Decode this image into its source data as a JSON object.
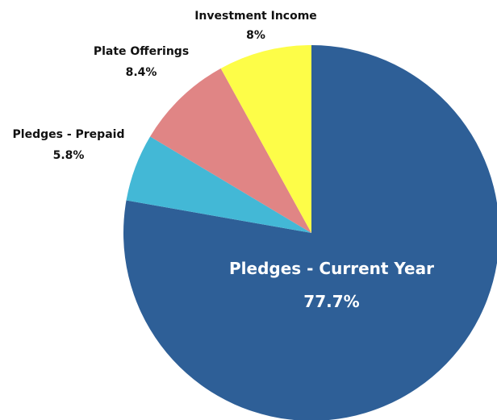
{
  "chart_data": {
    "type": "pie",
    "title": "",
    "slices": [
      {
        "label": "Pledges - Current Year",
        "value": 77.7,
        "value_label": "77.7%",
        "color": "#2e5f97",
        "label_color": "#ffffff"
      },
      {
        "label": "Pledges - Prepaid",
        "value": 5.8,
        "value_label": "5.8%",
        "color": "#43b8d6",
        "label_color": "#111111"
      },
      {
        "label": "Plate Offerings",
        "value": 8.4,
        "value_label": "8.4%",
        "color": "#e08585",
        "label_color": "#111111"
      },
      {
        "label": "Investment Income",
        "value": 8.0,
        "value_label": "8%",
        "color": "#fdfd48",
        "label_color": "#111111"
      }
    ],
    "start_angle_deg": 0,
    "direction": "clockwise",
    "legend": "none",
    "background": "#ffffff"
  }
}
